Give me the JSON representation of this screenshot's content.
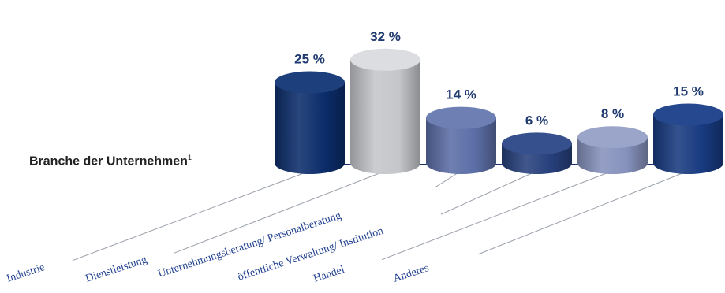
{
  "chart_data": {
    "type": "bar",
    "title": "Branche der Unternehmen",
    "title_footnote": "1",
    "categories": [
      "Industrie",
      "Dienstleistung",
      "Unternehmungsberatung/ Personalberatung",
      "öffentliche Verwaltung/ Institution",
      "Handel",
      "Anderes"
    ],
    "values": [
      25,
      32,
      14,
      6,
      8,
      15
    ],
    "value_labels": [
      "25 %",
      "32 %",
      "14 %",
      "6 %",
      "8 %",
      "15 %"
    ],
    "unit": "%",
    "style": "3d-cylinder",
    "grid": false,
    "legend": "none",
    "colors": [
      "#0c2d6b",
      "#c4c6ca",
      "#5b6ea6",
      "#27407c",
      "#8692bd",
      "#183a80"
    ],
    "top_colors": [
      "#1d3f7c",
      "#dcdde0",
      "#6e80b3",
      "#35508c",
      "#9aa5c9",
      "#26488e"
    ],
    "label_color": "#1f3a6f",
    "category_color": "#1f3f8f"
  }
}
